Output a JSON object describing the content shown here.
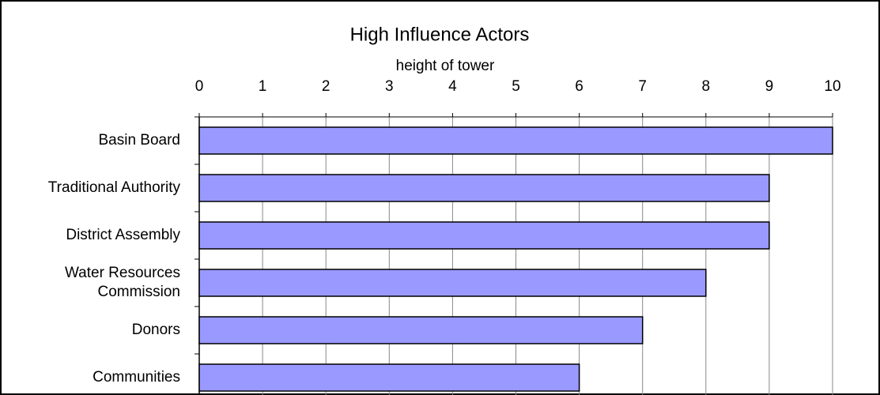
{
  "chart_data": {
    "type": "bar",
    "orientation": "horizontal",
    "title": "High Influence Actors",
    "x_label": "height of tower",
    "categories": [
      "Basin Board",
      "Traditional Authority",
      "District Assembly",
      "Water Resources Commission",
      "Donors",
      "Communities"
    ],
    "values": [
      10,
      9,
      9,
      8,
      7,
      6
    ],
    "color": "#9999ff",
    "xlim": [
      0,
      10
    ],
    "xticks": [
      0,
      1,
      2,
      3,
      4,
      5,
      6,
      7,
      8,
      9,
      10
    ],
    "grid": true
  }
}
